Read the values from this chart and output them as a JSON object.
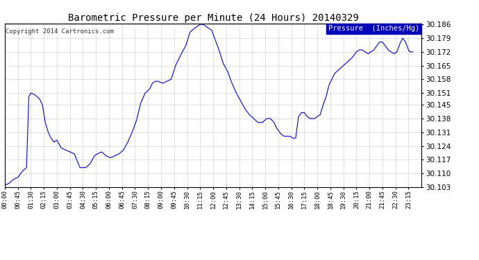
{
  "title": "Barometric Pressure per Minute (24 Hours) 20140329",
  "copyright": "Copyright 2014 Cartronics.com",
  "legend_label": "Pressure  (Inches/Hg)",
  "line_color": "#0000cc",
  "background_color": "#ffffff",
  "grid_color": "#bbbbbb",
  "ylim_min": 30.103,
  "ylim_max": 30.1865,
  "yticks": [
    30.103,
    30.11,
    30.117,
    30.124,
    30.131,
    30.138,
    30.145,
    30.151,
    30.158,
    30.165,
    30.172,
    30.179,
    30.186
  ],
  "xtick_labels": [
    "00:00",
    "00:45",
    "01:30",
    "02:15",
    "03:00",
    "03:45",
    "04:30",
    "05:15",
    "06:00",
    "06:45",
    "07:30",
    "08:15",
    "09:00",
    "09:45",
    "10:30",
    "11:15",
    "12:00",
    "12:45",
    "13:30",
    "14:15",
    "15:00",
    "15:45",
    "16:30",
    "17:15",
    "18:00",
    "18:45",
    "19:30",
    "20:15",
    "21:00",
    "21:45",
    "22:30",
    "23:15"
  ],
  "total_minutes": 1440,
  "data_points": [
    [
      0,
      30.104
    ],
    [
      15,
      30.105
    ],
    [
      30,
      30.107
    ],
    [
      45,
      30.108
    ],
    [
      60,
      30.111
    ],
    [
      75,
      30.113
    ],
    [
      83,
      30.149
    ],
    [
      90,
      30.151
    ],
    [
      105,
      30.15
    ],
    [
      120,
      30.148
    ],
    [
      130,
      30.145
    ],
    [
      140,
      30.136
    ],
    [
      150,
      30.131
    ],
    [
      160,
      30.128
    ],
    [
      170,
      30.126
    ],
    [
      180,
      30.127
    ],
    [
      195,
      30.123
    ],
    [
      210,
      30.122
    ],
    [
      225,
      30.121
    ],
    [
      240,
      30.12
    ],
    [
      260,
      30.113
    ],
    [
      280,
      30.113
    ],
    [
      295,
      30.115
    ],
    [
      310,
      30.119
    ],
    [
      320,
      30.12
    ],
    [
      335,
      30.121
    ],
    [
      350,
      30.119
    ],
    [
      365,
      30.118
    ],
    [
      380,
      30.119
    ],
    [
      395,
      30.12
    ],
    [
      410,
      30.122
    ],
    [
      425,
      30.126
    ],
    [
      440,
      30.131
    ],
    [
      455,
      30.137
    ],
    [
      470,
      30.146
    ],
    [
      485,
      30.151
    ],
    [
      500,
      30.153
    ],
    [
      510,
      30.156
    ],
    [
      520,
      30.157
    ],
    [
      530,
      30.157
    ],
    [
      545,
      30.156
    ],
    [
      560,
      30.157
    ],
    [
      575,
      30.158
    ],
    [
      590,
      30.165
    ],
    [
      610,
      30.171
    ],
    [
      625,
      30.175
    ],
    [
      640,
      30.182
    ],
    [
      655,
      30.184
    ],
    [
      665,
      30.185
    ],
    [
      675,
      30.186
    ],
    [
      685,
      30.186
    ],
    [
      695,
      30.185
    ],
    [
      705,
      30.184
    ],
    [
      715,
      30.183
    ],
    [
      725,
      30.179
    ],
    [
      740,
      30.173
    ],
    [
      755,
      30.166
    ],
    [
      770,
      30.162
    ],
    [
      785,
      30.156
    ],
    [
      800,
      30.151
    ],
    [
      815,
      30.147
    ],
    [
      830,
      30.143
    ],
    [
      845,
      30.14
    ],
    [
      860,
      30.138
    ],
    [
      875,
      30.136
    ],
    [
      890,
      30.136
    ],
    [
      905,
      30.138
    ],
    [
      918,
      30.138
    ],
    [
      930,
      30.136
    ],
    [
      940,
      30.133
    ],
    [
      955,
      30.13
    ],
    [
      965,
      30.129
    ],
    [
      975,
      30.129
    ],
    [
      985,
      30.129
    ],
    [
      995,
      30.128
    ],
    [
      1005,
      30.128
    ],
    [
      1015,
      30.139
    ],
    [
      1025,
      30.141
    ],
    [
      1035,
      30.141
    ],
    [
      1045,
      30.139
    ],
    [
      1055,
      30.138
    ],
    [
      1060,
      30.138
    ],
    [
      1070,
      30.138
    ],
    [
      1080,
      30.139
    ],
    [
      1090,
      30.14
    ],
    [
      1100,
      30.145
    ],
    [
      1110,
      30.149
    ],
    [
      1120,
      30.155
    ],
    [
      1130,
      30.158
    ],
    [
      1140,
      30.161
    ],
    [
      1155,
      30.163
    ],
    [
      1170,
      30.165
    ],
    [
      1185,
      30.167
    ],
    [
      1200,
      30.169
    ],
    [
      1215,
      30.172
    ],
    [
      1225,
      30.173
    ],
    [
      1235,
      30.173
    ],
    [
      1245,
      30.172
    ],
    [
      1255,
      30.171
    ],
    [
      1265,
      30.172
    ],
    [
      1275,
      30.173
    ],
    [
      1285,
      30.175
    ],
    [
      1295,
      30.177
    ],
    [
      1305,
      30.177
    ],
    [
      1315,
      30.175
    ],
    [
      1325,
      30.173
    ],
    [
      1335,
      30.172
    ],
    [
      1345,
      30.171
    ],
    [
      1355,
      30.172
    ],
    [
      1365,
      30.176
    ],
    [
      1375,
      30.179
    ],
    [
      1385,
      30.177
    ],
    [
      1395,
      30.173
    ],
    [
      1400,
      30.172
    ],
    [
      1410,
      30.172
    ]
  ]
}
